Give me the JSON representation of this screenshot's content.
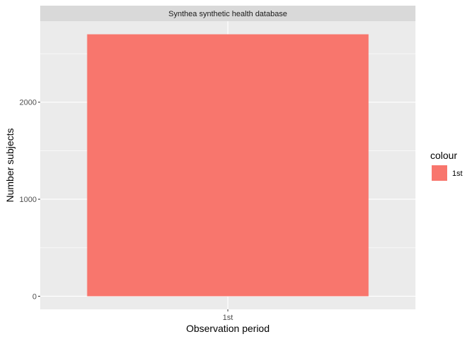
{
  "chart_data": {
    "type": "bar",
    "facet_title": "Synthea synthetic health database",
    "categories": [
      "1st"
    ],
    "series": [
      {
        "name": "1st",
        "values": [
          2700
        ],
        "color": "#F8766D"
      }
    ],
    "xlabel": "Observation period",
    "ylabel": "Number subjects",
    "ylim": [
      -135,
      2835
    ],
    "yticks": [
      0,
      1000,
      2000
    ],
    "grid": true,
    "legend": {
      "title": "colour",
      "position": "right",
      "entries": [
        "1st"
      ]
    }
  }
}
